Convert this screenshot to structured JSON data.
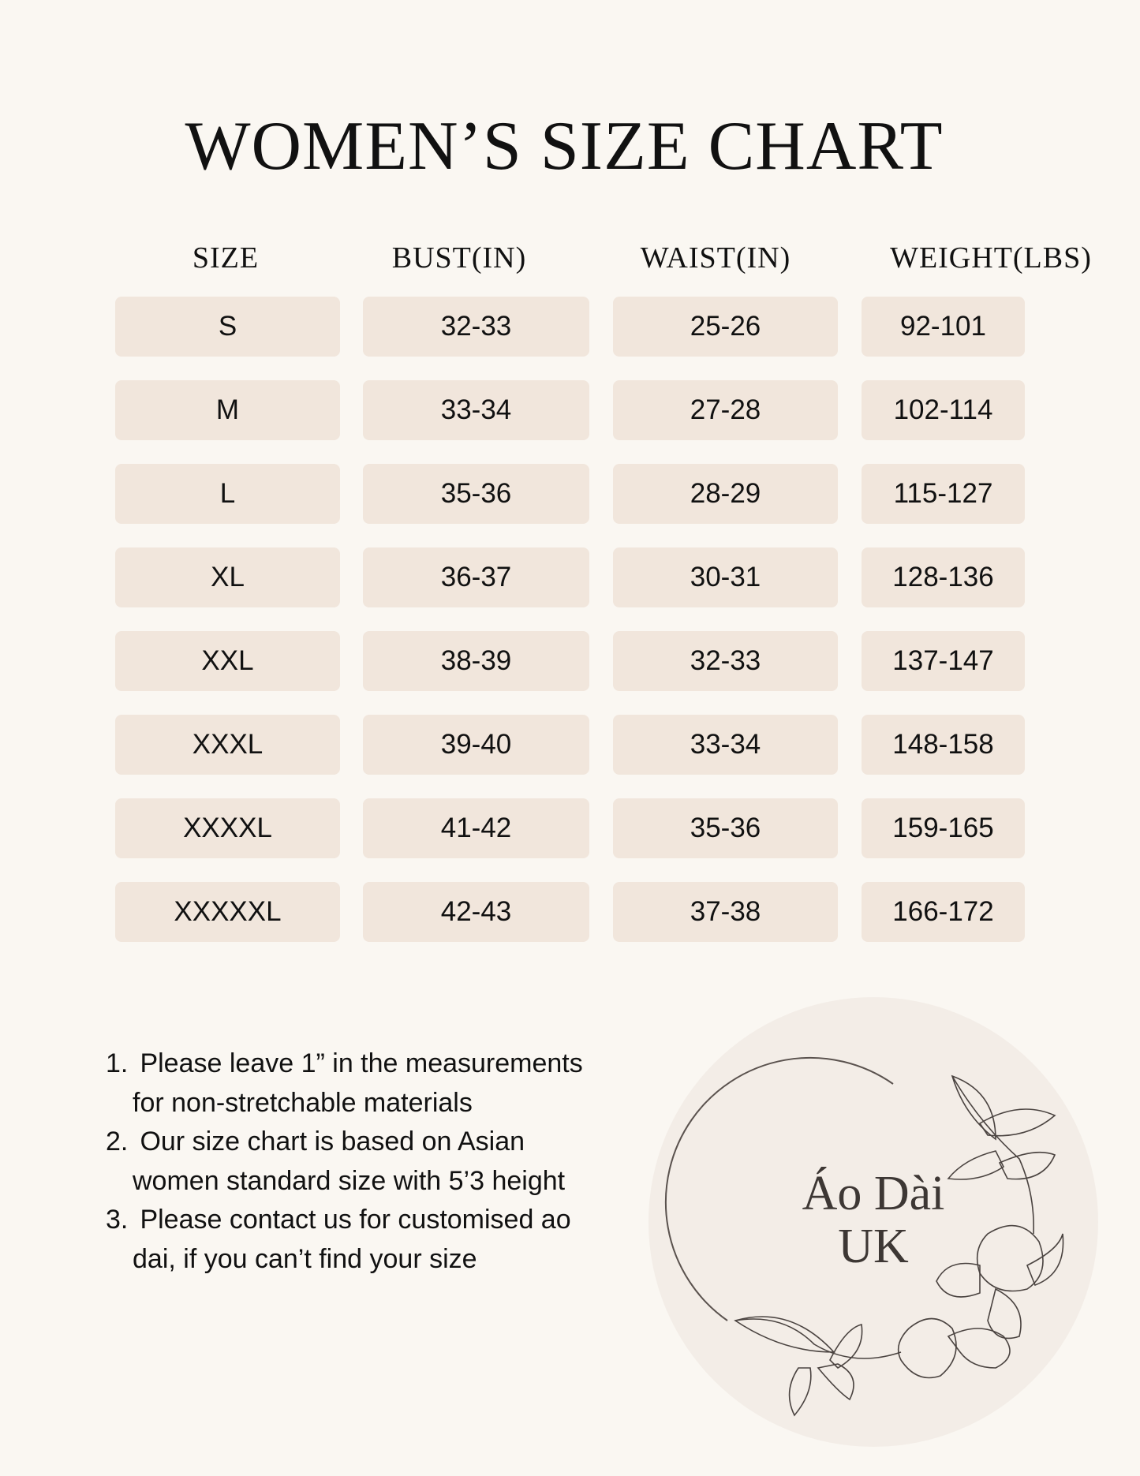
{
  "title": "WOMEN’S SIZE CHART",
  "table": {
    "headers": [
      "SIZE",
      "BUST(IN)",
      "WAIST(IN)",
      "WEIGHT(LBS)"
    ],
    "rows": [
      [
        "S",
        "32-33",
        "25-26",
        "92-101"
      ],
      [
        "M",
        "33-34",
        "27-28",
        "102-114"
      ],
      [
        "L",
        "35-36",
        "28-29",
        "115-127"
      ],
      [
        "XL",
        "36-37",
        "30-31",
        "128-136"
      ],
      [
        "XXL",
        "38-39",
        "32-33",
        "137-147"
      ],
      [
        "XXXL",
        "39-40",
        "33-34",
        "148-158"
      ],
      [
        "XXXXL",
        "41-42",
        "35-36",
        "159-165"
      ],
      [
        "XXXXXL",
        "42-43",
        "37-38",
        "166-172"
      ]
    ]
  },
  "notes": [
    {
      "num": "1.",
      "lines": [
        "Please leave 1” in the measurements",
        "for non-stretchable materials"
      ]
    },
    {
      "num": "2.",
      "lines": [
        "Our size chart is based on Asian",
        "women standard size with 5’3 height"
      ]
    },
    {
      "num": "3.",
      "lines": [
        "Please contact us for customised ao",
        "dai, if you can’t find your size"
      ]
    }
  ],
  "logo": {
    "line1": "Áo Dài",
    "line2": "UK",
    "icon": "floral-wreath-icon"
  },
  "colors": {
    "background": "#faf7f2",
    "cell": "#f1e6dc",
    "logo_circle": "#f3ede7",
    "ink": "#3d3734"
  }
}
